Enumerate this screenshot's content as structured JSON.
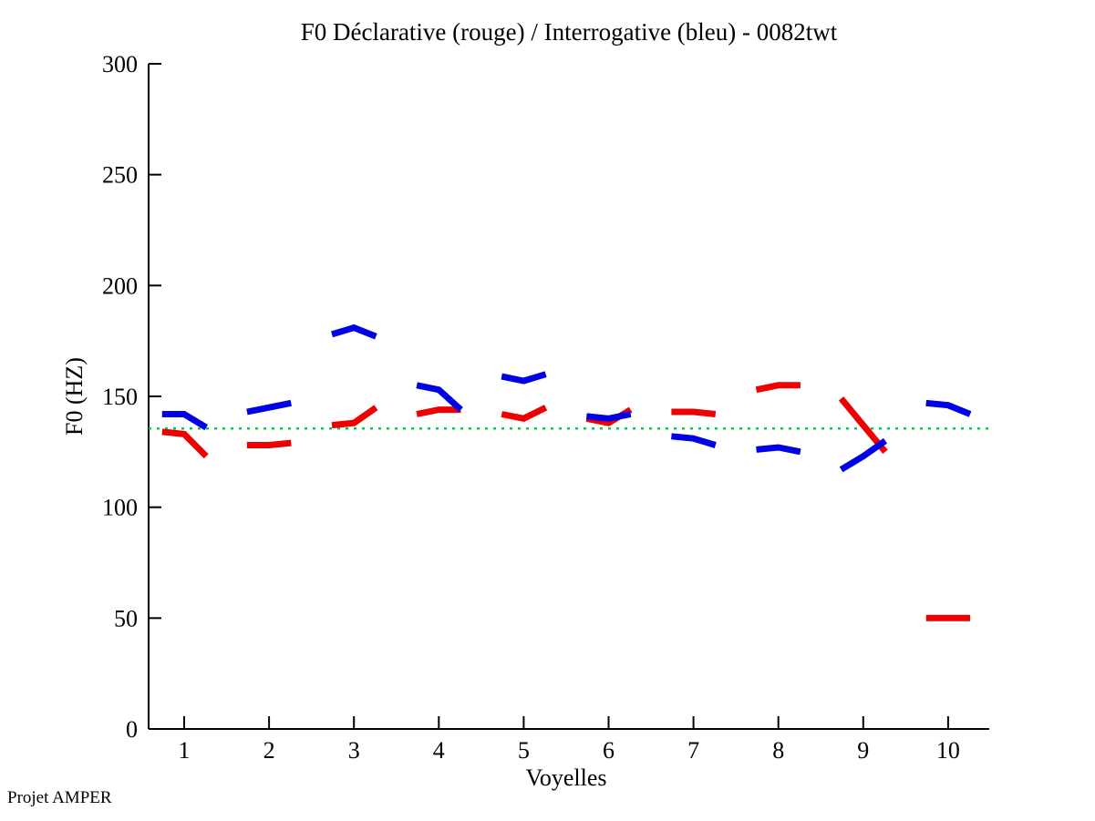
{
  "page": {
    "footer": "Projet AMPER"
  },
  "chart_data": {
    "type": "line",
    "title": "F0 Déclarative (rouge) / Interrogative (bleu) - 0082twt",
    "xlabel": "Voyelles",
    "ylabel": "F0 (HZ)",
    "xlim": [
      0.5,
      10.5
    ],
    "ylim": [
      0,
      300
    ],
    "xticks": [
      1,
      2,
      3,
      4,
      5,
      6,
      7,
      8,
      9,
      10
    ],
    "yticks": [
      0,
      50,
      100,
      150,
      200,
      250,
      300
    ],
    "grid": false,
    "legend_position": "none",
    "point_x_offsets": [
      -0.26,
      0,
      0.26
    ],
    "reference_line": {
      "y": 135.5,
      "color": "#00cc44",
      "style": "dotted"
    },
    "series": [
      {
        "name": "Déclarative",
        "color": "#ee0000",
        "segments": [
          [
            134,
            133,
            123
          ],
          [
            128,
            128,
            129
          ],
          [
            137,
            138,
            145
          ],
          [
            142,
            144,
            144
          ],
          [
            142,
            140,
            145
          ],
          [
            140,
            138,
            144
          ],
          [
            143,
            143,
            142
          ],
          [
            153,
            155,
            155
          ],
          [
            149,
            137,
            125
          ],
          [
            50,
            50,
            50
          ]
        ]
      },
      {
        "name": "Interrogative",
        "color": "#0000e6",
        "segments": [
          [
            142,
            142,
            136
          ],
          [
            143,
            145,
            147
          ],
          [
            178,
            181,
            177
          ],
          [
            155,
            153,
            144
          ],
          [
            159,
            157,
            160
          ],
          [
            141,
            140,
            142
          ],
          [
            132,
            131,
            128
          ],
          [
            126,
            127,
            125
          ],
          [
            117,
            123,
            130
          ],
          [
            147,
            146,
            142
          ]
        ]
      }
    ]
  }
}
